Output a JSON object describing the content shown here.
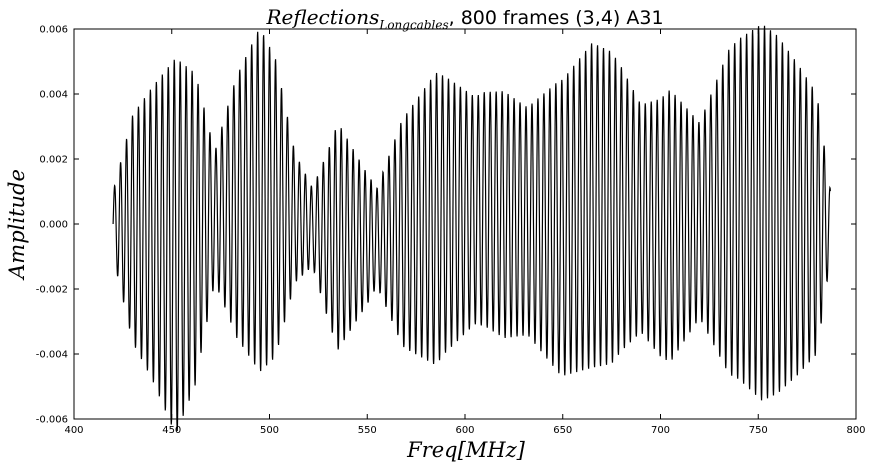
{
  "chart_data": {
    "type": "line",
    "title": {
      "math_main": "Reflections",
      "math_sub": "Longcables",
      "rest": ", 800 frames (3,4) A31"
    },
    "xlabel": "Freq[MHz]",
    "ylabel": "Amplitude",
    "xlim": [
      400,
      800
    ],
    "ylim": [
      -0.006,
      0.006
    ],
    "xticks": [
      "400",
      "450",
      "500",
      "550",
      "600",
      "650",
      "700",
      "750",
      "800"
    ],
    "yticks": [
      "0.006",
      "0.004",
      "0.002",
      "0.000",
      "-0.002",
      "-0.004",
      "-0.006"
    ],
    "grid": false,
    "series": [
      {
        "color": "#000000",
        "x_range": [
          420,
          787
        ],
        "carrier_period_mhz": 3.05,
        "envelope": [
          [
            420,
            0.001
          ],
          [
            430,
            0.0035
          ],
          [
            440,
            0.0045
          ],
          [
            452,
            0.0058
          ],
          [
            462,
            0.0048
          ],
          [
            472,
            0.002
          ],
          [
            483,
            0.004
          ],
          [
            495,
            0.0053
          ],
          [
            503,
            0.0046
          ],
          [
            513,
            0.002
          ],
          [
            522,
            0.0012
          ],
          [
            535,
            0.0035
          ],
          [
            545,
            0.0025
          ],
          [
            555,
            0.0015
          ],
          [
            568,
            0.0035
          ],
          [
            585,
            0.0045
          ],
          [
            595,
            0.004
          ],
          [
            605,
            0.0035
          ],
          [
            620,
            0.0038
          ],
          [
            632,
            0.0035
          ],
          [
            648,
            0.0045
          ],
          [
            665,
            0.005
          ],
          [
            675,
            0.0048
          ],
          [
            690,
            0.0035
          ],
          [
            705,
            0.0042
          ],
          [
            720,
            0.003
          ],
          [
            735,
            0.005
          ],
          [
            752,
            0.0058
          ],
          [
            760,
            0.0055
          ],
          [
            770,
            0.0048
          ],
          [
            780,
            0.004
          ],
          [
            787,
            0.001
          ]
        ],
        "baseline": [
          [
            420,
            0.0
          ],
          [
            440,
            -0.0005
          ],
          [
            452,
            -0.0012
          ],
          [
            465,
            0.0
          ],
          [
            480,
            0.0008
          ],
          [
            495,
            0.0013
          ],
          [
            510,
            0.0005
          ],
          [
            530,
            -0.0006
          ],
          [
            550,
            -0.0008
          ],
          [
            570,
            -0.0004
          ],
          [
            590,
            0.0005
          ],
          [
            610,
            0.0008
          ],
          [
            630,
            0.0002
          ],
          [
            650,
            -0.0002
          ],
          [
            665,
            0.001
          ],
          [
            680,
            0.0008
          ],
          [
            700,
            -0.0002
          ],
          [
            720,
            0.0002
          ],
          [
            740,
            0.0008
          ],
          [
            760,
            0.0005
          ],
          [
            780,
            0.0
          ],
          [
            787,
            0.0
          ]
        ]
      }
    ]
  }
}
